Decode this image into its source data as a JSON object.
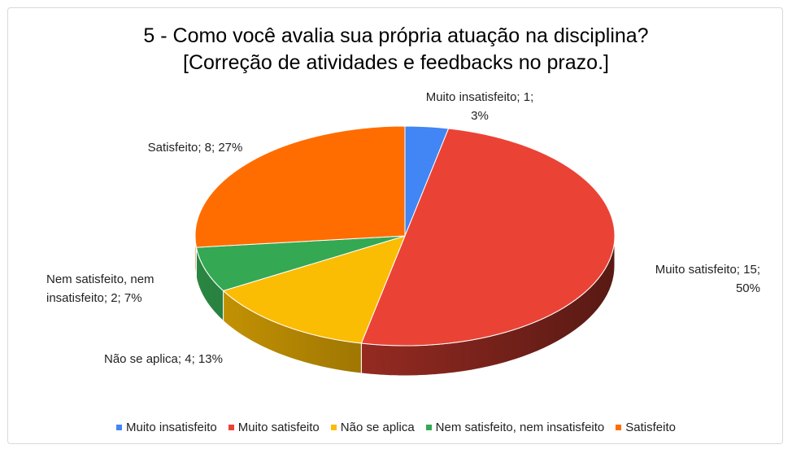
{
  "chart_data": {
    "type": "pie",
    "title": "5 - Como você avalia sua própria atuação na disciplina?\n[Correção de atividades e feedbacks no prazo.]",
    "categories": [
      "Muito insatisfeito",
      "Muito satisfeito",
      "Não se aplica",
      "Nem satisfeito, nem insatisfeito",
      "Satisfeito"
    ],
    "values": [
      1,
      15,
      4,
      2,
      8
    ],
    "value_labels": [
      "Muito insatisfeito; 1;\n3%",
      "Muito satisfeito; 15;\n50%",
      "Não se aplica; 4; 13%",
      "Nem satisfeito, nem\ninsatisfeito; 2; 7%",
      "Satisfeito; 8; 27%"
    ],
    "colors": [
      "#4285f4",
      "#ea4335",
      "#fbbc04",
      "#34a853",
      "#ff6d01"
    ],
    "legend": "bottom"
  }
}
